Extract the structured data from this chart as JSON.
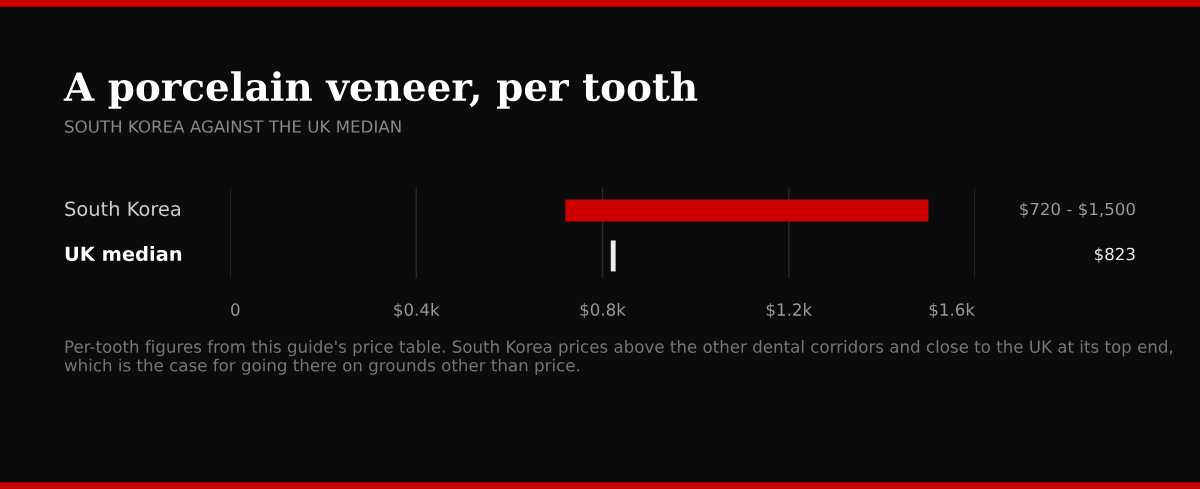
{
  "chart_data": {
    "type": "bar",
    "orientation": "horizontal",
    "title": "A porcelain veneer, per tooth",
    "subtitle": "SOUTH KOREA AGAINST THE UK MEDIAN",
    "categories": [
      "South Korea",
      "UK median"
    ],
    "series": [
      {
        "type": "bar",
        "color": "#cc0000",
        "values": [
          780,
          null
        ],
        "base": [
          720,
          null
        ]
      }
    ],
    "ref_lines": [
      {
        "axis": "x",
        "value": 823,
        "color": "#eeeeee"
      }
    ],
    "xlim": [
      0,
      1600
    ],
    "xticks": [
      0,
      {
        "value": 400,
        "label": "$0.4k"
      },
      {
        "value": 800,
        "label": "$0.8k"
      },
      {
        "value": 1200,
        "label": "$1.2k"
      },
      {
        "value": 1600,
        "label": "$1.6k"
      }
    ],
    "grid": "x",
    "annotations": [
      "$720 - $1,500",
      "$823",
      "Per-tooth figures from this guide's price table. South Korea prices above the other dental corridors and close to the UK at its top end, which is the case for going there on grounds other than price."
    ]
  }
}
